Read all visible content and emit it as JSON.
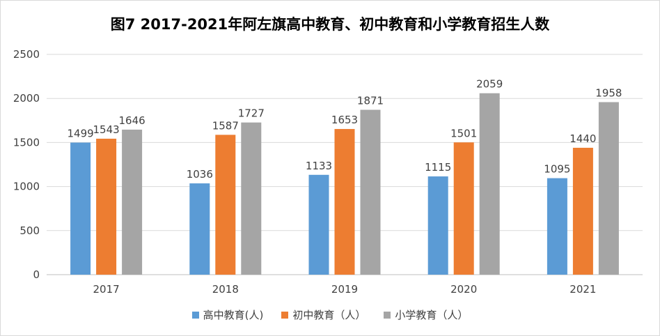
{
  "chart_data": {
    "type": "bar",
    "title": "图7  2017-2021年阿左旗高中教育、初中教育和小学教育招生人数",
    "categories": [
      "2017",
      "2018",
      "2019",
      "2020",
      "2021"
    ],
    "series": [
      {
        "name": "高中教育(人)",
        "color": "#5b9bd5",
        "values": [
          1499,
          1036,
          1133,
          1115,
          1095
        ]
      },
      {
        "name": "初中教育（人）",
        "color": "#ed7d31",
        "values": [
          1543,
          1587,
          1653,
          1501,
          1440
        ]
      },
      {
        "name": "小学教育（人）",
        "color": "#a5a5a5",
        "values": [
          1646,
          1727,
          1871,
          2059,
          1958
        ]
      }
    ],
    "ylim": [
      0,
      2500
    ],
    "yticks": [
      0,
      500,
      1000,
      1500,
      2000,
      2500
    ],
    "grid": true,
    "legend": "bottom"
  }
}
